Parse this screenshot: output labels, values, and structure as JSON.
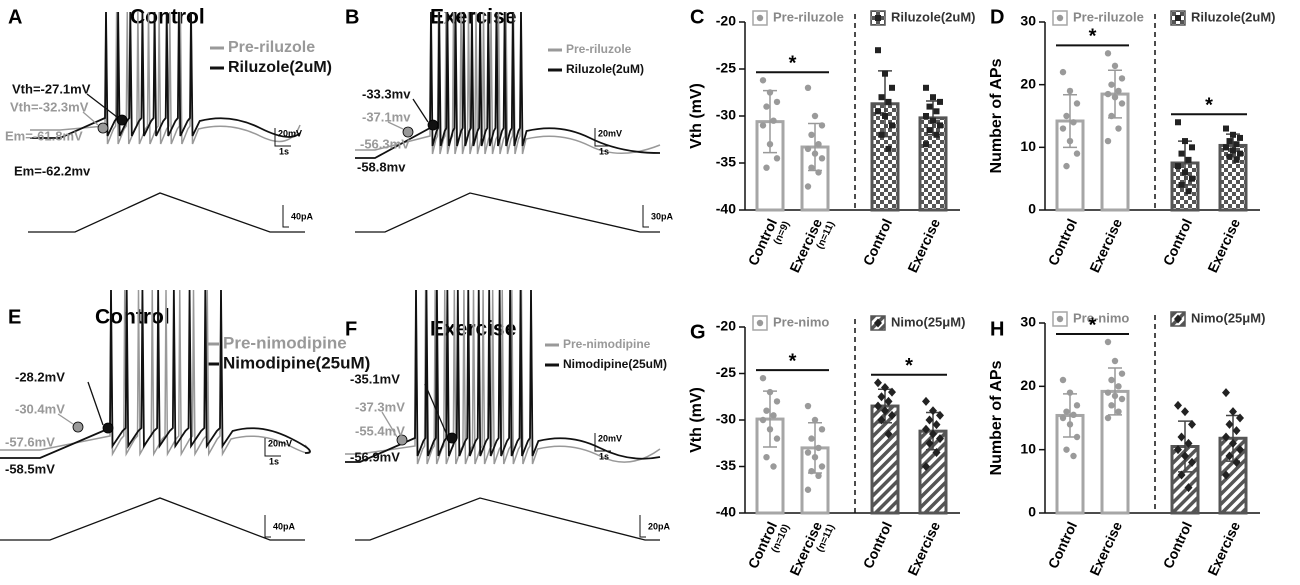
{
  "chart_data": [
    {
      "type": "trace",
      "label": "A",
      "title": "Control",
      "series": [
        {
          "name": "Pre-riluzole",
          "color": "#999999"
        },
        {
          "name": "Riluzole(2uM)",
          "color": "#111111"
        }
      ],
      "annotations": [
        {
          "text": "Vth=-27.1mV",
          "color": "#111111"
        },
        {
          "text": "Vth=-32.3mV",
          "color": "#999999"
        },
        {
          "text": "Em=-61.8mV",
          "color": "#999999"
        },
        {
          "text": "Em=-62.2mv",
          "color": "#111111"
        }
      ],
      "scale_labels": [
        "20mV",
        "1s",
        "40pA"
      ]
    },
    {
      "type": "trace",
      "label": "B",
      "title": "Exercise",
      "series": [
        {
          "name": "Pre-riluzole",
          "color": "#999999"
        },
        {
          "name": "Riluzole(2uM)",
          "color": "#111111"
        }
      ],
      "annotations": [
        {
          "text": "-33.3mv",
          "color": "#111111"
        },
        {
          "text": "-37.1mv",
          "color": "#999999"
        },
        {
          "text": "-56.3mV",
          "color": "#999999"
        },
        {
          "text": "-58.8mv",
          "color": "#111111"
        }
      ],
      "scale_labels": [
        "20mV",
        "1s",
        "30pA"
      ]
    },
    {
      "type": "bar",
      "label": "C",
      "ylabel": "Vth (mV)",
      "categories": [
        "Control",
        "Exercise",
        "Control",
        "Exercise"
      ],
      "category_notes": [
        "(n=9)",
        "(n=11)",
        null,
        null
      ],
      "ylim": [
        -40,
        -20
      ],
      "yticks": [
        -40,
        -35,
        -30,
        -25,
        -20
      ],
      "series": [
        {
          "name": "Pre-riluzole",
          "color": "#a6a6a6",
          "pattern": "none",
          "marker": "circle",
          "point_color": "#9a9a9a",
          "values": [
            -30.6,
            -33.3,
            null,
            null
          ],
          "errors": [
            3.3,
            2.5,
            null,
            null
          ],
          "points": [
            [
              -26.2,
              -27.5,
              -28.5,
              -29,
              -30.5,
              -31,
              -33,
              -34.5,
              -35.5
            ],
            [
              -27,
              -30,
              -31,
              -32,
              -33,
              -33.5,
              -34,
              -34.5,
              -35.5,
              -36,
              -37.5
            ],
            null,
            null
          ]
        },
        {
          "name": "Riluzole(2uM)",
          "color": "#555555",
          "pattern": "checker",
          "marker": "square",
          "point_color": "#222222",
          "values": [
            null,
            null,
            -28.7,
            -30.2
          ],
          "errors": [
            null,
            null,
            3.5,
            1.8
          ],
          "points": [
            null,
            null,
            [
              -23,
              -25.5,
              -27,
              -28,
              -28.5,
              -29.5,
              -30,
              -31,
              -32,
              -33.5
            ],
            [
              -27,
              -28,
              -28.5,
              -29,
              -29.5,
              -30,
              -30.5,
              -31,
              -31.5,
              -32,
              -33
            ]
          ]
        }
      ],
      "significance": [
        {
          "label": "*",
          "categories": [
            0,
            1
          ]
        }
      ]
    },
    {
      "type": "bar",
      "label": "D",
      "ylabel": "Number of APs",
      "categories": [
        "Control",
        "Exercise",
        "Control",
        "Exercise"
      ],
      "category_notes": [
        null,
        null,
        null,
        null
      ],
      "ylim": [
        0,
        30
      ],
      "yticks": [
        0,
        10,
        20,
        30
      ],
      "series": [
        {
          "name": "Pre-riluzole",
          "color": "#a6a6a6",
          "pattern": "none",
          "marker": "circle",
          "point_color": "#9a9a9a",
          "values": [
            14.2,
            18.5,
            null,
            null
          ],
          "errors": [
            4.2,
            3.8,
            null,
            null
          ],
          "points": [
            [
              22,
              19,
              17,
              15,
              14,
              13,
              11,
              9,
              7
            ],
            [
              25,
              23,
              21,
              20,
              19,
              18.5,
              18,
              17,
              15,
              13,
              11
            ],
            null,
            null
          ]
        },
        {
          "name": "Riluzole(2uM)",
          "color": "#555555",
          "pattern": "checker",
          "marker": "square",
          "point_color": "#222222",
          "values": [
            null,
            null,
            7.5,
            10.3
          ],
          "errors": [
            null,
            null,
            3.5,
            1.8
          ],
          "points": [
            null,
            null,
            [
              14,
              11,
              10,
              9,
              8,
              7,
              6,
              5,
              4,
              3
            ],
            [
              13,
              12,
              11.5,
              11,
              10.5,
              10,
              9.5,
              9,
              8.5,
              8,
              10
            ]
          ]
        }
      ],
      "significance": [
        {
          "label": "*",
          "categories": [
            0,
            1
          ]
        },
        {
          "label": "*",
          "categories": [
            2,
            3
          ]
        }
      ]
    },
    {
      "type": "trace",
      "label": "E",
      "title": "Control",
      "series": [
        {
          "name": "Pre-nimodipine",
          "color": "#999999"
        },
        {
          "name": "Nimodipine(25uM)",
          "color": "#111111"
        }
      ],
      "annotations": [
        {
          "text": "-28.2mV",
          "color": "#111111"
        },
        {
          "text": "-30.4mV",
          "color": "#999999"
        },
        {
          "text": "-57.6mV",
          "color": "#999999"
        },
        {
          "text": "-58.5mV",
          "color": "#111111"
        }
      ],
      "scale_labels": [
        "20mV",
        "1s",
        "40pA"
      ]
    },
    {
      "type": "trace",
      "label": "F",
      "title": "Exercise",
      "series": [
        {
          "name": "Pre-nimodipine",
          "color": "#999999"
        },
        {
          "name": "Nimodipine(25uM)",
          "color": "#111111"
        }
      ],
      "annotations": [
        {
          "text": "-35.1mV",
          "color": "#111111"
        },
        {
          "text": "-37.3mV",
          "color": "#999999"
        },
        {
          "text": "-55.4mV",
          "color": "#999999"
        },
        {
          "text": "-56.9mV",
          "color": "#111111"
        }
      ],
      "scale_labels": [
        "20mV",
        "1s",
        "20pA"
      ]
    },
    {
      "type": "bar",
      "label": "G",
      "ylabel": "Vth (mV)",
      "categories": [
        "Control",
        "Exercise",
        "Control",
        "Exercise"
      ],
      "category_notes": [
        "(n=10)",
        "(n=11)",
        null,
        null
      ],
      "ylim": [
        -40,
        -20
      ],
      "yticks": [
        -40,
        -35,
        -30,
        -25,
        -20
      ],
      "series": [
        {
          "name": "Pre-nimo",
          "color": "#a6a6a6",
          "pattern": "none",
          "marker": "circle",
          "point_color": "#9a9a9a",
          "values": [
            -29.9,
            -33.0,
            null,
            null
          ],
          "errors": [
            3.0,
            2.7,
            null,
            null
          ],
          "points": [
            [
              -25.5,
              -27,
              -28,
              -29,
              -29.5,
              -30,
              -31,
              -32,
              -34,
              -35
            ],
            [
              -28.5,
              -30,
              -31,
              -32,
              -33,
              -33.5,
              -34,
              -35,
              -35.5,
              -36,
              -37.5
            ],
            null,
            null
          ]
        },
        {
          "name": "Nimo(25μM)",
          "color": "#555555",
          "pattern": "hatch",
          "marker": "diamond",
          "point_color": "#222222",
          "values": [
            null,
            null,
            -28.5,
            -31.2
          ],
          "errors": [
            null,
            null,
            1.8,
            2.0
          ],
          "points": [
            null,
            null,
            [
              -26,
              -26.5,
              -27,
              -27.5,
              -28,
              -28.5,
              -29,
              -29.5,
              -30,
              -31.5
            ],
            [
              -28,
              -29,
              -29.5,
              -30,
              -30.5,
              -31,
              -31.5,
              -32,
              -32.5,
              -33.5,
              -35
            ]
          ]
        }
      ],
      "significance": [
        {
          "label": "*",
          "categories": [
            0,
            1
          ]
        },
        {
          "label": "*",
          "categories": [
            2,
            3
          ]
        }
      ]
    },
    {
      "type": "bar",
      "label": "H",
      "ylabel": "Number of APs",
      "categories": [
        "Control",
        "Exercise",
        "Control",
        "Exercise"
      ],
      "category_notes": [
        null,
        null,
        null,
        null
      ],
      "ylim": [
        0,
        30
      ],
      "yticks": [
        0,
        10,
        20,
        30
      ],
      "series": [
        {
          "name": "Pre-nimo",
          "color": "#a6a6a6",
          "pattern": "none",
          "marker": "circle",
          "point_color": "#9a9a9a",
          "values": [
            15.4,
            19.2,
            null,
            null
          ],
          "errors": [
            3.4,
            3.7,
            null,
            null
          ],
          "points": [
            [
              21,
              19,
              17,
              16,
              15.5,
              15,
              14,
              12,
              10,
              9
            ],
            [
              27,
              24,
              22,
              21,
              20,
              19,
              18.5,
              18,
              17,
              16,
              15
            ],
            null,
            null
          ]
        },
        {
          "name": "Nimo(25μM)",
          "color": "#555555",
          "pattern": "hatch",
          "marker": "diamond",
          "point_color": "#222222",
          "values": [
            null,
            null,
            10.5,
            11.8
          ],
          "errors": [
            null,
            null,
            4.0,
            3.6
          ],
          "points": [
            null,
            null,
            [
              17,
              16,
              14,
              12,
              11,
              10,
              9,
              8,
              6,
              4
            ],
            [
              19,
              16,
              15,
              14,
              13,
              12,
              11,
              10,
              9,
              8,
              6
            ]
          ]
        }
      ],
      "significance": [
        {
          "label": "*",
          "categories": [
            0,
            1
          ]
        }
      ]
    }
  ]
}
